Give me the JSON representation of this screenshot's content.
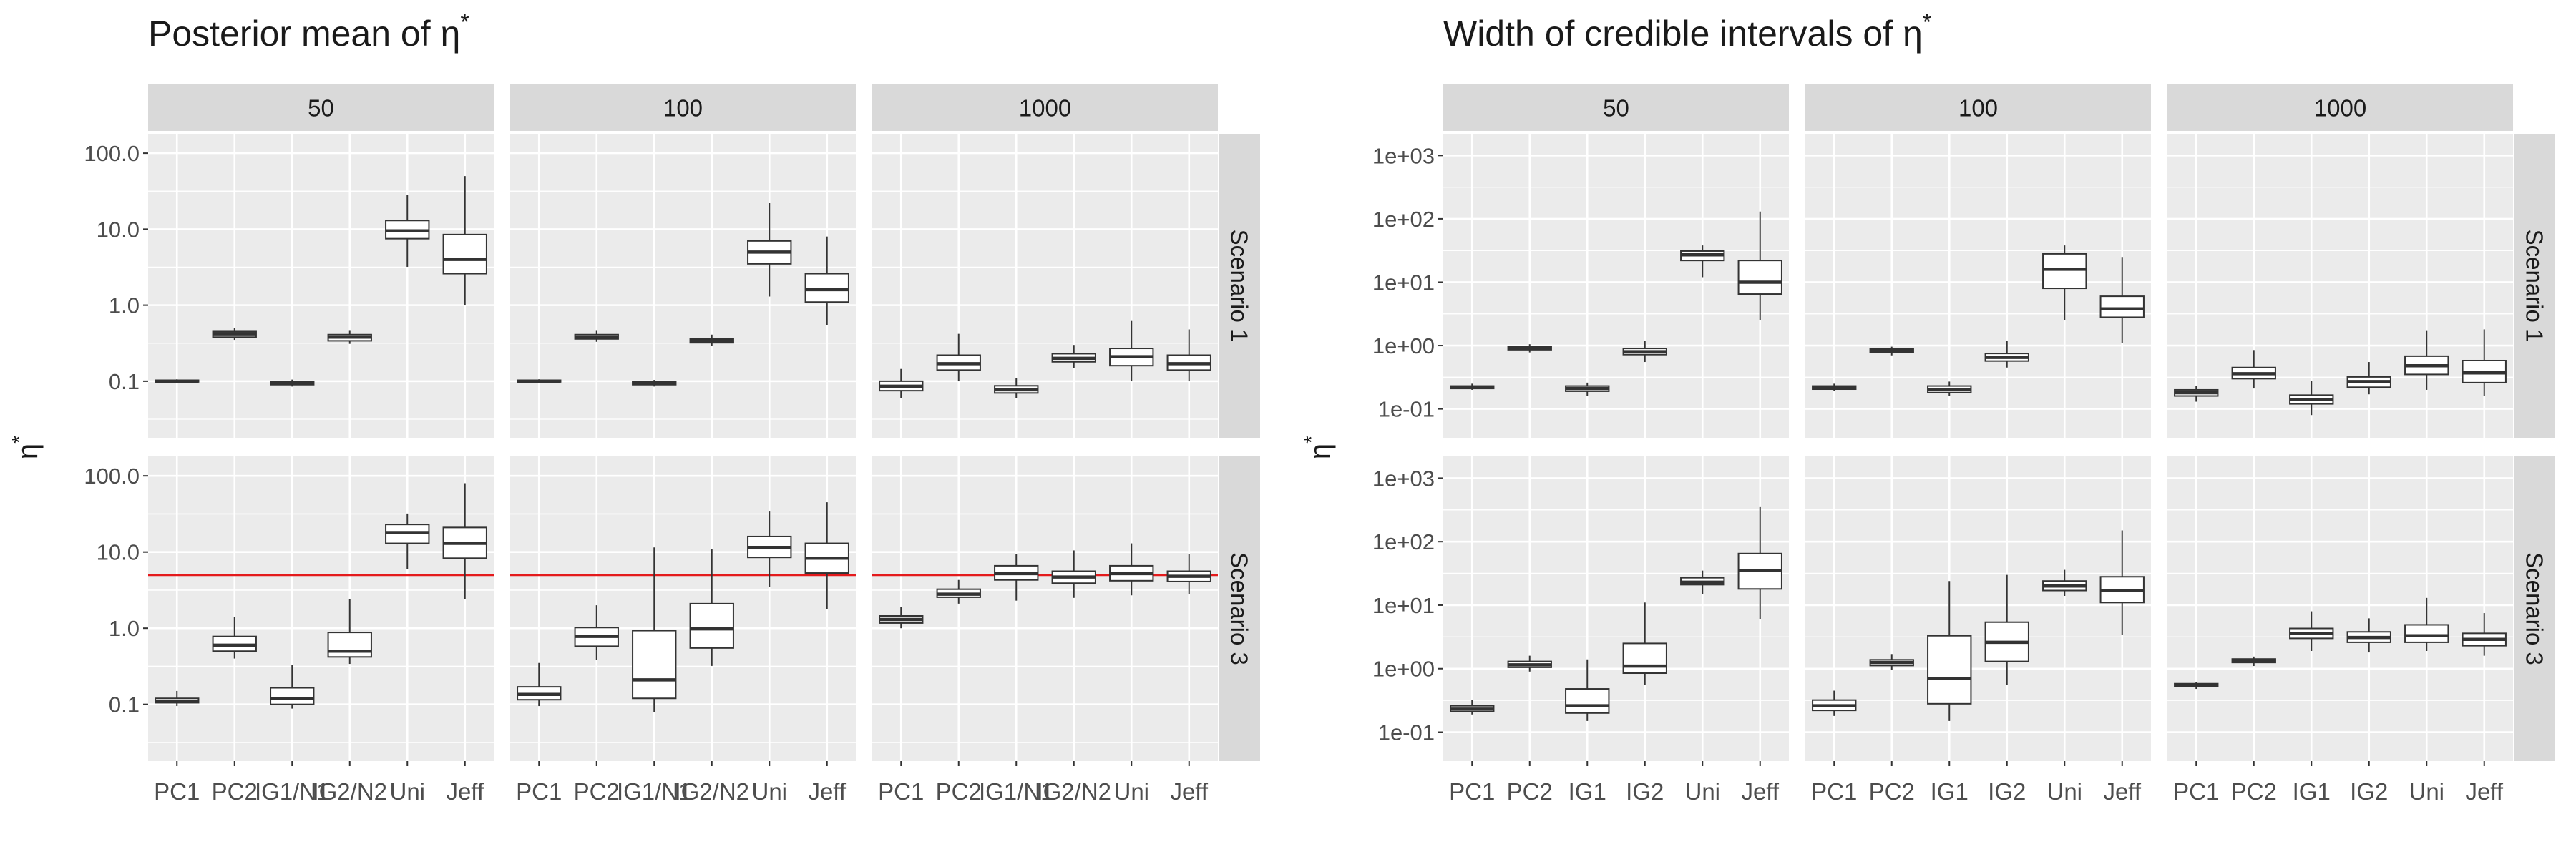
{
  "colors": {
    "panel_bg": "#EBEBEB",
    "grid": "#FFFFFF",
    "strip_bg": "#D9D9D9",
    "box_fill": "#FFFFFF",
    "box_stroke": "#333333",
    "ref_line": "#E41A1C",
    "text": "#1A1A1A",
    "tick_text": "#4D4D4D"
  },
  "shared": {
    "y_label": "η",
    "y_label_sup": "*",
    "col_strips": [
      "50",
      "100",
      "1000"
    ],
    "row_strips": [
      "Scenario 1",
      "Scenario 3"
    ]
  },
  "chart_data": [
    {
      "type": "boxplot",
      "title": "Posterior mean of η",
      "title_sup": "*",
      "xlabel": "",
      "ylabel": "η*",
      "y_scale": "log10",
      "ylim": [
        0.018,
        180
      ],
      "y_ticks": [
        0.1,
        1,
        10,
        100
      ],
      "y_tick_labels": [
        "0.1",
        "1.0",
        "10.0",
        "100.0"
      ],
      "categories": [
        "PC1",
        "PC2",
        "IG1/N1",
        "IG2/N2",
        "Uni",
        "Jeff"
      ],
      "category_labels": [
        "PC1",
        "PC2",
        "IG1/N1",
        "IG2/N2",
        "Uni",
        "Jeff"
      ],
      "facet_cols": [
        "50",
        "100",
        "1000"
      ],
      "facet_rows": [
        "Scenario 1",
        "Scenario 3"
      ],
      "reference_line": {
        "rows": [
          "Scenario 3"
        ],
        "value": 5
      },
      "panels": [
        {
          "row": "Scenario 1",
          "col": "50",
          "boxes": [
            [
              0.095,
              0.098,
              0.1,
              0.103,
              0.106
            ],
            [
              0.35,
              0.38,
              0.42,
              0.45,
              0.5
            ],
            [
              0.085,
              0.09,
              0.094,
              0.098,
              0.105
            ],
            [
              0.31,
              0.34,
              0.38,
              0.41,
              0.46
            ],
            [
              3.2,
              7.5,
              9.5,
              13,
              28
            ],
            [
              1,
              2.6,
              4,
              8.5,
              50
            ]
          ]
        },
        {
          "row": "Scenario 1",
          "col": "100",
          "boxes": [
            [
              0.095,
              0.098,
              0.1,
              0.103,
              0.106
            ],
            [
              0.33,
              0.36,
              0.38,
              0.41,
              0.46
            ],
            [
              0.085,
              0.09,
              0.094,
              0.098,
              0.104
            ],
            [
              0.29,
              0.32,
              0.34,
              0.36,
              0.41
            ],
            [
              1.3,
              3.5,
              5,
              7,
              22
            ],
            [
              0.55,
              1.1,
              1.6,
              2.6,
              8
            ]
          ]
        },
        {
          "row": "Scenario 1",
          "col": "1000",
          "boxes": [
            [
              0.06,
              0.075,
              0.086,
              0.1,
              0.145
            ],
            [
              0.1,
              0.14,
              0.17,
              0.22,
              0.42
            ],
            [
              0.06,
              0.07,
              0.077,
              0.087,
              0.11
            ],
            [
              0.15,
              0.18,
              0.2,
              0.23,
              0.3
            ],
            [
              0.1,
              0.16,
              0.21,
              0.27,
              0.62
            ],
            [
              0.1,
              0.14,
              0.17,
              0.22,
              0.48
            ]
          ]
        },
        {
          "row": "Scenario 3",
          "col": "50",
          "boxes": [
            [
              0.095,
              0.105,
              0.11,
              0.12,
              0.15
            ],
            [
              0.4,
              0.5,
              0.6,
              0.78,
              1.4
            ],
            [
              0.088,
              0.1,
              0.12,
              0.165,
              0.33
            ],
            [
              0.34,
              0.42,
              0.5,
              0.88,
              2.4
            ],
            [
              6,
              13,
              18,
              23,
              32
            ],
            [
              2.4,
              8.3,
              13,
              21,
              80
            ]
          ]
        },
        {
          "row": "Scenario 3",
          "col": "100",
          "boxes": [
            [
              0.095,
              0.115,
              0.135,
              0.17,
              0.35
            ],
            [
              0.38,
              0.58,
              0.78,
              1.02,
              2
            ],
            [
              0.08,
              0.12,
              0.21,
              0.93,
              11.5
            ],
            [
              0.32,
              0.55,
              0.98,
              2.1,
              11
            ],
            [
              3.5,
              8.5,
              11.5,
              16,
              34
            ],
            [
              1.8,
              5.3,
              8.3,
              13,
              45
            ]
          ]
        },
        {
          "row": "Scenario 3",
          "col": "1000",
          "boxes": [
            [
              1,
              1.17,
              1.3,
              1.45,
              1.9
            ],
            [
              2.1,
              2.55,
              2.8,
              3.25,
              4.3
            ],
            [
              2.3,
              4.3,
              5.2,
              6.6,
              9.5
            ],
            [
              2.5,
              3.9,
              4.7,
              5.6,
              10.5
            ],
            [
              2.7,
              4.2,
              5.2,
              6.6,
              13
            ],
            [
              2.8,
              4.1,
              4.8,
              5.6,
              9.5
            ]
          ]
        }
      ]
    },
    {
      "type": "boxplot",
      "title": "Width of credible intervals of η",
      "title_sup": "*",
      "xlabel": "",
      "ylabel": "η*",
      "y_scale": "log10",
      "ylim": [
        0.035,
        2200
      ],
      "y_ticks": [
        0.1,
        1,
        10,
        100,
        1000
      ],
      "y_tick_labels": [
        "1e-01",
        "1e+00",
        "1e+01",
        "1e+02",
        "1e+03"
      ],
      "categories": [
        "PC1",
        "PC2",
        "IG1",
        "IG2",
        "Uni",
        "Jeff"
      ],
      "category_labels": [
        "PC1",
        "PC2",
        "IG1",
        "IG2",
        "Uni",
        "Jeff"
      ],
      "facet_cols": [
        "50",
        "100",
        "1000"
      ],
      "facet_rows": [
        "Scenario 1",
        "Scenario 3"
      ],
      "reference_line": null,
      "panels": [
        {
          "row": "Scenario 1",
          "col": "50",
          "boxes": [
            [
              0.2,
              0.21,
              0.22,
              0.23,
              0.25
            ],
            [
              0.78,
              0.86,
              0.92,
              0.97,
              1.05
            ],
            [
              0.16,
              0.19,
              0.21,
              0.23,
              0.26
            ],
            [
              0.55,
              0.72,
              0.8,
              0.9,
              1.2
            ],
            [
              12,
              22,
              27,
              31,
              38
            ],
            [
              2.5,
              6.5,
              10,
              22,
              130
            ]
          ]
        },
        {
          "row": "Scenario 1",
          "col": "100",
          "boxes": [
            [
              0.19,
              0.205,
              0.215,
              0.23,
              0.25
            ],
            [
              0.7,
              0.78,
              0.83,
              0.88,
              0.96
            ],
            [
              0.16,
              0.18,
              0.2,
              0.23,
              0.27
            ],
            [
              0.45,
              0.57,
              0.65,
              0.75,
              1.2
            ],
            [
              2.5,
              8,
              16,
              28,
              38
            ],
            [
              1.1,
              2.8,
              3.8,
              6,
              25
            ]
          ]
        },
        {
          "row": "Scenario 1",
          "col": "1000",
          "boxes": [
            [
              0.13,
              0.16,
              0.18,
              0.2,
              0.23
            ],
            [
              0.21,
              0.3,
              0.36,
              0.45,
              0.85
            ],
            [
              0.08,
              0.12,
              0.14,
              0.165,
              0.28
            ],
            [
              0.17,
              0.22,
              0.27,
              0.32,
              0.55
            ],
            [
              0.2,
              0.35,
              0.48,
              0.68,
              1.7
            ],
            [
              0.16,
              0.26,
              0.37,
              0.58,
              1.8
            ]
          ]
        },
        {
          "row": "Scenario 3",
          "col": "50",
          "boxes": [
            [
              0.19,
              0.21,
              0.23,
              0.26,
              0.32
            ],
            [
              0.9,
              1.05,
              1.15,
              1.3,
              1.6
            ],
            [
              0.15,
              0.2,
              0.26,
              0.48,
              1.4
            ],
            [
              0.55,
              0.85,
              1.1,
              2.5,
              11
            ],
            [
              15,
              21,
              23,
              27,
              35
            ],
            [
              6,
              18,
              35,
              65,
              350
            ]
          ]
        },
        {
          "row": "Scenario 3",
          "col": "100",
          "boxes": [
            [
              0.18,
              0.22,
              0.26,
              0.32,
              0.45
            ],
            [
              0.95,
              1.12,
              1.25,
              1.38,
              1.7
            ],
            [
              0.15,
              0.28,
              0.7,
              3.3,
              24
            ],
            [
              0.55,
              1.3,
              2.6,
              5.4,
              30
            ],
            [
              14,
              17,
              20,
              24,
              36
            ],
            [
              3.4,
              11,
              17,
              28,
              150
            ]
          ]
        },
        {
          "row": "Scenario 3",
          "col": "1000",
          "boxes": [
            [
              0.48,
              0.52,
              0.54,
              0.58,
              0.62
            ],
            [
              1.1,
              1.25,
              1.35,
              1.42,
              1.55
            ],
            [
              1.9,
              3,
              3.6,
              4.3,
              8
            ],
            [
              1.8,
              2.6,
              3.1,
              3.8,
              6.2
            ],
            [
              1.9,
              2.6,
              3.3,
              4.9,
              13
            ],
            [
              1.6,
              2.3,
              2.9,
              3.6,
              7.5
            ]
          ]
        }
      ]
    }
  ]
}
